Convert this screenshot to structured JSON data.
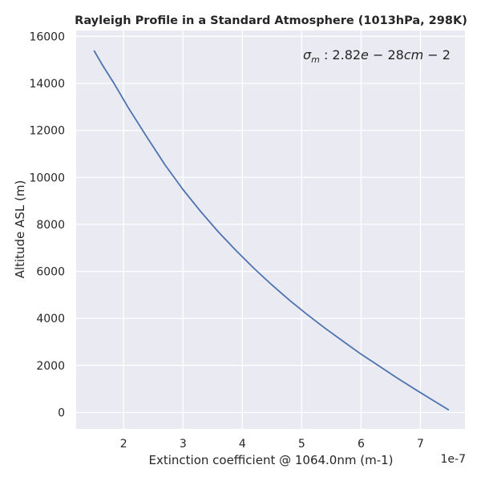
{
  "chart_data": {
    "type": "line",
    "title": "Rayleigh Profile in a Standard Atmosphere (1013hPa, 298K)",
    "xlabel": "Extinction coefficient @ 1064.0nm (m-1)",
    "ylabel": "Altitude ASL (m)",
    "x_offset_label": "1e-7",
    "annotation": {
      "text": "$\\sigma_m: 2.82e-28 cm-2$"
    },
    "xlim": [
      1.2,
      7.75
    ],
    "ylim": [
      -700,
      16250
    ],
    "x_ticks": [
      2,
      3,
      4,
      5,
      6,
      7
    ],
    "y_ticks": [
      0,
      2000,
      4000,
      6000,
      8000,
      10000,
      12000,
      14000,
      16000
    ],
    "grid": true,
    "series": [
      {
        "color": "#4c72b0",
        "x": [
          7.48,
          7.2,
          6.9,
          6.6,
          6.3,
          6.0,
          5.7,
          5.4,
          5.1,
          4.8,
          4.5,
          4.2,
          3.9,
          3.6,
          3.3,
          3.0,
          2.7,
          2.4,
          2.07,
          1.85,
          1.65,
          1.5
        ],
        "y": [
          100,
          530,
          1000,
          1480,
          1980,
          2480,
          3020,
          3570,
          4150,
          4760,
          5420,
          6120,
          6870,
          7670,
          8540,
          9480,
          10520,
          11680,
          13000,
          13950,
          14750,
          15400
        ]
      }
    ]
  },
  "colors": {
    "plot_bg": "#eaeaf2",
    "grid": "#ffffff",
    "line": "#4c72b0",
    "text": "#262626"
  }
}
